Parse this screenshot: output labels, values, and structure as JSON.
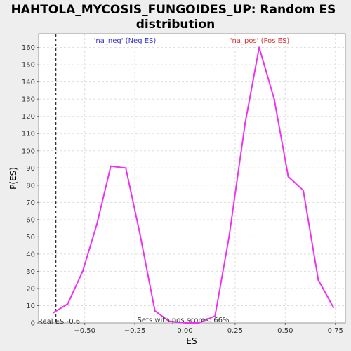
{
  "chart_data": {
    "type": "line",
    "title_line1": "HAHTOLA_MYCOSIS_FUNGOIDES_UP: Random ES",
    "title_line2": "distribution",
    "xlabel": "ES",
    "ylabel": "P(ES)",
    "xlim": [
      -0.73,
      0.8
    ],
    "ylim": [
      0,
      168
    ],
    "xticks": [
      -0.5,
      -0.25,
      0.0,
      0.25,
      0.5,
      0.75
    ],
    "xtick_labels": [
      "−0.50",
      "−0.25",
      "0.00",
      "0.25",
      "0.50",
      "0.75"
    ],
    "yticks": [
      0,
      10,
      20,
      30,
      40,
      50,
      60,
      70,
      80,
      90,
      100,
      110,
      120,
      130,
      140,
      150,
      160
    ],
    "ytick_labels": [
      "0",
      "10",
      "20",
      "30",
      "40",
      "50",
      "60",
      "70",
      "80",
      "90",
      "100",
      "110",
      "120",
      "130",
      "140",
      "150",
      "160"
    ],
    "grid": true,
    "series": [
      {
        "color": "#ee33ee",
        "x": [
          -0.655,
          -0.585,
          -0.51,
          -0.44,
          -0.37,
          -0.295,
          -0.225,
          -0.15,
          -0.08,
          0.0,
          0.07,
          0.15,
          0.22,
          0.3,
          0.37,
          0.445,
          0.515,
          0.59,
          0.665,
          0.74
        ],
        "y": [
          6,
          11,
          30,
          57,
          91,
          90,
          52,
          7,
          1,
          0,
          0,
          4,
          50,
          116,
          160,
          130,
          85,
          77,
          25,
          9
        ]
      }
    ],
    "real_es": -0.645,
    "annotations": {
      "neg_label": "'na_neg' (Neg ES)",
      "pos_label": "'na_pos' (Pos ES)",
      "real_es_label": "Real ES -0.6",
      "pos_scores_label": "Sets with pos scores: 66%"
    },
    "colors": {
      "neg": "#3333cc",
      "pos": "#dd3333",
      "line": "#ee33ee",
      "grid": "#dddddd"
    }
  }
}
